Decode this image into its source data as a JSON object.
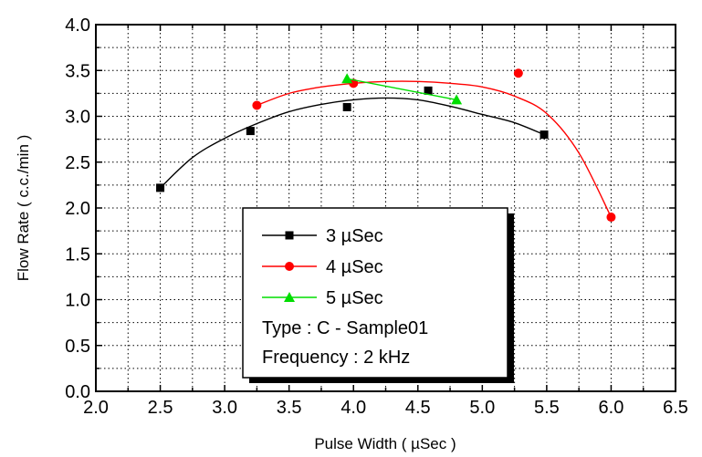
{
  "chart_data": {
    "type": "scatter",
    "xlabel": "Pulse Width ( µSec )",
    "ylabel": "Flow Rate ( c.c./min )",
    "xlim": [
      2.0,
      6.5
    ],
    "ylim": [
      0.0,
      4.0
    ],
    "x_ticks": [
      "2.0",
      "2.5",
      "3.0",
      "3.5",
      "4.0",
      "4.5",
      "5.0",
      "5.5",
      "6.0",
      "6.5"
    ],
    "y_ticks": [
      "0.0",
      "0.5",
      "1.0",
      "1.5",
      "2.0",
      "2.5",
      "3.0",
      "3.5",
      "4.0"
    ],
    "grid": "dotted",
    "legend_placement": "bottom-center",
    "series": [
      {
        "name": "3 µSec",
        "color": "#000000",
        "marker": "square",
        "points": [
          [
            2.5,
            2.22
          ],
          [
            3.2,
            2.84
          ],
          [
            3.95,
            3.1
          ],
          [
            4.58,
            3.28
          ],
          [
            5.48,
            2.8
          ]
        ],
        "fit_curve": [
          [
            2.5,
            2.22
          ],
          [
            2.75,
            2.55
          ],
          [
            3.0,
            2.76
          ],
          [
            3.25,
            2.92
          ],
          [
            3.5,
            3.05
          ],
          [
            3.75,
            3.13
          ],
          [
            4.0,
            3.18
          ],
          [
            4.25,
            3.2
          ],
          [
            4.5,
            3.18
          ],
          [
            4.75,
            3.11
          ],
          [
            5.0,
            3.02
          ],
          [
            5.25,
            2.93
          ],
          [
            5.48,
            2.8
          ]
        ]
      },
      {
        "name": "4 µSec",
        "color": "#ff0000",
        "marker": "circle",
        "points": [
          [
            3.25,
            3.12
          ],
          [
            4.0,
            3.36
          ],
          [
            5.28,
            3.47
          ],
          [
            6.0,
            1.9
          ]
        ],
        "fit_curve": [
          [
            3.25,
            3.12
          ],
          [
            3.5,
            3.25
          ],
          [
            3.75,
            3.32
          ],
          [
            4.0,
            3.36
          ],
          [
            4.25,
            3.38
          ],
          [
            4.5,
            3.38
          ],
          [
            4.75,
            3.36
          ],
          [
            5.0,
            3.32
          ],
          [
            5.25,
            3.22
          ],
          [
            5.5,
            3.03
          ],
          [
            5.75,
            2.6
          ],
          [
            6.0,
            1.9
          ]
        ]
      },
      {
        "name": "5 µSec",
        "color": "#00dd00",
        "marker": "triangle",
        "points": [
          [
            3.95,
            3.41
          ],
          [
            4.8,
            3.18
          ]
        ],
        "fit_curve": [
          [
            3.95,
            3.41
          ],
          [
            4.8,
            3.18
          ]
        ]
      }
    ],
    "annotations": [
      "Type : C - Sample01",
      "Frequency : 2 kHz"
    ]
  }
}
